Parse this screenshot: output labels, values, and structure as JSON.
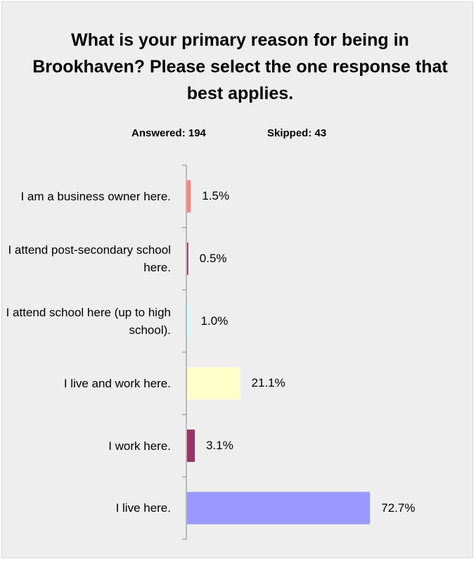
{
  "chart_data": {
    "type": "bar",
    "orientation": "horizontal",
    "title": "What is your primary reason for being in Brookhaven? Please select the one response that best applies.",
    "answered": "Answered: 194",
    "skipped": "Skipped: 43",
    "categories": [
      "I am a business owner here.",
      "I attend post-secondary school here.",
      "I attend school here (up to high school).",
      "I live and work here.",
      "I work here.",
      "I live here."
    ],
    "values": [
      1.5,
      0.5,
      1.0,
      21.1,
      3.1,
      72.7
    ],
    "value_labels": [
      "1.5%",
      "0.5%",
      "1.0%",
      "21.1%",
      "3.1%",
      "72.7%"
    ],
    "colors": [
      "#ff8080",
      "#993366",
      "#ccffff",
      "#ffffcc",
      "#993366",
      "#9999ff"
    ],
    "xlim": [
      0,
      100
    ],
    "grid": false,
    "legend": "none"
  }
}
